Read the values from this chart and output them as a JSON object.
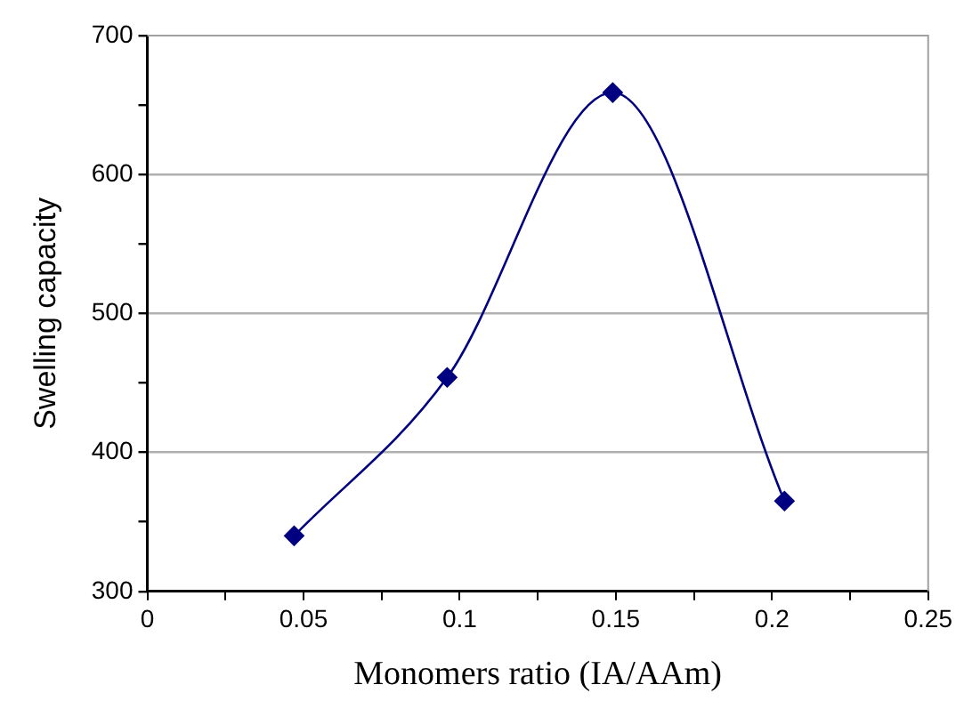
{
  "chart_data": {
    "type": "line",
    "xlabel": "Monomers ratio (IA/AAm)",
    "ylabel": "Swelling capacity",
    "x": [
      0.047,
      0.096,
      0.149,
      0.204
    ],
    "series": [
      {
        "color": "#000080",
        "values": [
          340,
          454,
          659,
          365
        ]
      }
    ],
    "xlim": [
      0,
      0.25
    ],
    "xticks": [
      0,
      {
        "value": 0.025,
        "label": null
      },
      0.05,
      {
        "value": 0.075,
        "label": null
      },
      0.1,
      {
        "value": 0.125,
        "label": null
      },
      0.15,
      {
        "value": 0.175,
        "label": null
      },
      0.2,
      {
        "value": 0.225,
        "label": null
      },
      0.25
    ],
    "ylim": [
      300,
      700
    ],
    "yticks": [
      300,
      {
        "value": 350,
        "label": null
      },
      400,
      {
        "value": 450,
        "label": null
      },
      500,
      {
        "value": 550,
        "label": null
      },
      600,
      {
        "value": 650,
        "label": null
      },
      700
    ],
    "grid": "y",
    "marker": "diamond",
    "line_style": "solid",
    "legend": false
  }
}
